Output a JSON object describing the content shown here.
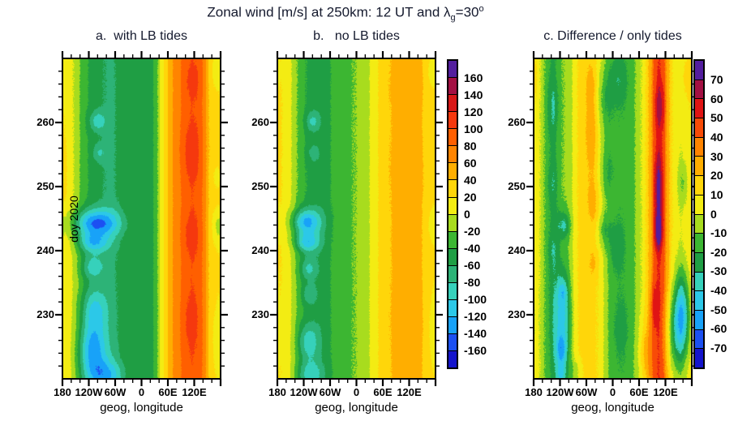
{
  "title": {
    "prefix": "Zonal wind [m/s] at 250km: 12 UT and ",
    "lambda": "λ",
    "lambda_sub": "g",
    "mid": "=30",
    "deg": "o"
  },
  "chart_data": {
    "type": "heatmap",
    "x_axis": {
      "label": "geog, longitude",
      "range": [
        -180,
        180
      ],
      "major_ticks": [
        -180,
        -120,
        -60,
        0,
        60,
        120,
        180
      ],
      "major_tick_labels": [
        "180",
        "120W",
        "60W",
        "0",
        "60E",
        "120E"
      ],
      "minor_tick_step": 20
    },
    "y_axis": {
      "label": "doy 2020",
      "range": [
        220,
        270
      ],
      "major_ticks": [
        260,
        250,
        240,
        230
      ],
      "major_tick_labels": [
        "260",
        "250",
        "240",
        "230"
      ],
      "minor_tick_step": 2
    },
    "colorbars": [
      {
        "id": "main",
        "applies_to_panels": [
          "a",
          "b"
        ],
        "units": "m/s",
        "levels": [
          -160,
          -140,
          -120,
          -100,
          -80,
          -60,
          -40,
          -20,
          0,
          20,
          40,
          60,
          80,
          100,
          120,
          140,
          160
        ],
        "colors": [
          "#1414cc",
          "#1c50f2",
          "#18a2f8",
          "#2cc8e8",
          "#36d1bb",
          "#2db377",
          "#1f9e44",
          "#3cb632",
          "#a8dc1e",
          "#f3ec13",
          "#ffd60a",
          "#ffae00",
          "#ff8400",
          "#ff5f00",
          "#f5380e",
          "#d81717",
          "#a31043",
          "#531e9e"
        ]
      },
      {
        "id": "diff",
        "applies_to_panels": [
          "c"
        ],
        "units": "m/s",
        "levels": [
          -70,
          -60,
          -50,
          -40,
          -30,
          -20,
          -10,
          0,
          10,
          20,
          30,
          40,
          50,
          60,
          70
        ],
        "colors": [
          "#1414cc",
          "#1c50f2",
          "#18a2f8",
          "#2cc8e8",
          "#36d1bb",
          "#1f9e44",
          "#3cb632",
          "#a8dc1e",
          "#f3ec13",
          "#ffd60a",
          "#ffae00",
          "#ff8400",
          "#f84b07",
          "#e01414",
          "#a31043",
          "#531e9e"
        ]
      }
    ],
    "panels": [
      {
        "id": "a",
        "title": "a.  with LB tides",
        "colorbar": "main",
        "lon_anchor_start": -175,
        "lon_anchor_step": 10,
        "base_profile": [
          18,
          12,
          0,
          -14,
          -28,
          -38,
          -45,
          -50,
          -55,
          -60,
          -62,
          -62,
          -58,
          -52,
          -46,
          -42,
          -42,
          -44,
          -48,
          -48,
          -42,
          -22,
          6,
          30,
          50,
          64,
          74,
          84,
          92,
          97,
          95,
          85,
          62,
          38,
          28,
          24
        ],
        "events": [
          {
            "lon": -105,
            "doy": 244.3,
            "lon_sigma": 38,
            "doy_sigma": 1.5,
            "amp": -95
          },
          {
            "lon": -112,
            "doy": 241.2,
            "lon_sigma": 25,
            "doy_sigma": 1.1,
            "amp": -65
          },
          {
            "lon": -112,
            "doy": 237.5,
            "lon_sigma": 18,
            "doy_sigma": 1.3,
            "amp": -45
          },
          {
            "lon": -108,
            "doy": 230.5,
            "lon_sigma": 20,
            "doy_sigma": 2.6,
            "amp": -60
          },
          {
            "lon": -112,
            "doy": 224.5,
            "lon_sigma": 22,
            "doy_sigma": 2.6,
            "amp": -80
          },
          {
            "lon": -98,
            "doy": 220.5,
            "lon_sigma": 26,
            "doy_sigma": 1.8,
            "amp": -55
          },
          {
            "lon": -100,
            "doy": 260.2,
            "lon_sigma": 13,
            "doy_sigma": 1.1,
            "amp": -42
          },
          {
            "lon": -96,
            "doy": 255.3,
            "lon_sigma": 11,
            "doy_sigma": 1.0,
            "amp": -28
          },
          {
            "lon": 113,
            "doy": 255.5,
            "lon_sigma": 17,
            "doy_sigma": 3.2,
            "amp": 16
          },
          {
            "lon": 112,
            "doy": 242.5,
            "lon_sigma": 15,
            "doy_sigma": 2.4,
            "amp": 14
          },
          {
            "lon": 110,
            "doy": 229,
            "lon_sigma": 15,
            "doy_sigma": 3.5,
            "amp": 12
          },
          {
            "lon": 116,
            "doy": 266.5,
            "lon_sigma": 14,
            "doy_sigma": 2.0,
            "amp": 12
          },
          {
            "lon": -65,
            "doy": 220.5,
            "lon_sigma": 22,
            "doy_sigma": 1.6,
            "amp": -25
          },
          {
            "lon": -178,
            "doy": 252,
            "lon_sigma": 10,
            "doy_sigma": 4,
            "amp": 8
          },
          {
            "lon": 172,
            "doy": 268,
            "lon_sigma": 9,
            "doy_sigma": 1.8,
            "amp": -22
          },
          {
            "lon": 172,
            "doy": 251.5,
            "lon_sigma": 8,
            "doy_sigma": 1.6,
            "amp": -16
          },
          {
            "lon": 173,
            "doy": 243.5,
            "lon_sigma": 9,
            "doy_sigma": 2.0,
            "amp": -22
          },
          {
            "lon": 174,
            "doy": 226,
            "lon_sigma": 10,
            "doy_sigma": 4.0,
            "amp": -18
          }
        ]
      },
      {
        "id": "b",
        "title": "b.   no LB tides",
        "colorbar": "main",
        "lon_anchor_start": -175,
        "lon_anchor_step": 10,
        "base_profile": [
          22,
          18,
          8,
          -2,
          -20,
          -32,
          -40,
          -46,
          -50,
          -52,
          -50,
          -45,
          -38,
          -32,
          -28,
          -25,
          -22,
          -20,
          -18,
          -14,
          -6,
          6,
          16,
          25,
          33,
          38,
          42,
          45,
          48,
          50,
          50,
          48,
          43,
          36,
          30,
          25
        ],
        "events": [
          {
            "lon": -115,
            "doy": 244.5,
            "lon_sigma": 24,
            "doy_sigma": 1.4,
            "amp": -85
          },
          {
            "lon": -113,
            "doy": 241.3,
            "lon_sigma": 20,
            "doy_sigma": 1.1,
            "amp": -70
          },
          {
            "lon": -110,
            "doy": 237.2,
            "lon_sigma": 14,
            "doy_sigma": 1.2,
            "amp": -42
          },
          {
            "lon": -108,
            "doy": 233.2,
            "lon_sigma": 12,
            "doy_sigma": 1.2,
            "amp": -32
          },
          {
            "lon": -110,
            "doy": 225.8,
            "lon_sigma": 17,
            "doy_sigma": 2.0,
            "amp": -52
          },
          {
            "lon": -106,
            "doy": 220.6,
            "lon_sigma": 20,
            "doy_sigma": 1.6,
            "amp": -50
          },
          {
            "lon": -100,
            "doy": 260.2,
            "lon_sigma": 11,
            "doy_sigma": 1.1,
            "amp": -38
          },
          {
            "lon": -98,
            "doy": 255.2,
            "lon_sigma": 10,
            "doy_sigma": 1.0,
            "amp": -22
          },
          {
            "lon": 115,
            "doy": 266,
            "lon_sigma": 25,
            "doy_sigma": 2.6,
            "amp": 7
          },
          {
            "lon": 118,
            "doy": 252.5,
            "lon_sigma": 25,
            "doy_sigma": 3.4,
            "amp": 7
          },
          {
            "lon": 120,
            "doy": 229.5,
            "lon_sigma": 22,
            "doy_sigma": 4.5,
            "amp": 6
          },
          {
            "lon": 172,
            "doy": 268,
            "lon_sigma": 9,
            "doy_sigma": 1.6,
            "amp": -18
          },
          {
            "lon": 173,
            "doy": 244,
            "lon_sigma": 9,
            "doy_sigma": 2.0,
            "amp": -16
          },
          {
            "lon": 174,
            "doy": 228,
            "lon_sigma": 10,
            "doy_sigma": 4.5,
            "amp": -14
          }
        ]
      },
      {
        "id": "c",
        "title": "c. Difference / only tides",
        "colorbar": "diff",
        "lon_anchor_start": -175,
        "lon_anchor_step": 10,
        "base_profile": [
          8,
          0,
          -10,
          -18,
          -22,
          -16,
          -10,
          -8,
          -2,
          8,
          12,
          14,
          14,
          13,
          10,
          4,
          -6,
          -13,
          -16,
          -18,
          -18,
          -16,
          -13,
          -8,
          0,
          10,
          24,
          42,
          50,
          44,
          26,
          10,
          4,
          2,
          5,
          8
        ],
        "events": [
          {
            "lon": -114,
            "doy": 229.5,
            "lon_sigma": 13,
            "doy_sigma": 5.5,
            "amp": -34
          },
          {
            "lon": -117,
            "doy": 224.3,
            "lon_sigma": 8,
            "doy_sigma": 1.7,
            "amp": -26
          },
          {
            "lon": -114,
            "doy": 233.5,
            "lon_sigma": 7,
            "doy_sigma": 1.2,
            "amp": -14
          },
          {
            "lon": -117,
            "doy": 220.5,
            "lon_sigma": 8,
            "doy_sigma": 1.3,
            "amp": -22
          },
          {
            "lon": -111,
            "doy": 244,
            "lon_sigma": 11,
            "doy_sigma": 1.6,
            "amp": -22
          },
          {
            "lon": -136,
            "doy": 262.5,
            "lon_sigma": 9,
            "doy_sigma": 3.2,
            "amp": -10
          },
          {
            "lon": -136,
            "doy": 250.5,
            "lon_sigma": 8,
            "doy_sigma": 2.4,
            "amp": -8
          },
          {
            "lon": -135,
            "doy": 240,
            "lon_sigma": 8,
            "doy_sigma": 2.2,
            "amp": -8
          },
          {
            "lon": -48,
            "doy": 258.5,
            "lon_sigma": 9,
            "doy_sigma": 4.8,
            "amp": 16
          },
          {
            "lon": -45,
            "doy": 247.5,
            "lon_sigma": 8,
            "doy_sigma": 2.2,
            "amp": 14
          },
          {
            "lon": -50,
            "doy": 266,
            "lon_sigma": 8,
            "doy_sigma": 2.2,
            "amp": 10
          },
          {
            "lon": -45,
            "doy": 238,
            "lon_sigma": 7,
            "doy_sigma": 1.6,
            "amp": 10
          },
          {
            "lon": -20,
            "doy": 263.5,
            "lon_sigma": 13,
            "doy_sigma": 3.8,
            "amp": -16
          },
          {
            "lon": -16,
            "doy": 252.5,
            "lon_sigma": 11,
            "doy_sigma": 3.0,
            "amp": -13
          },
          {
            "lon": -20,
            "doy": 243.2,
            "lon_sigma": 10,
            "doy_sigma": 1.8,
            "amp": -16
          },
          {
            "lon": 12,
            "doy": 266.5,
            "lon_sigma": 15,
            "doy_sigma": 2.4,
            "amp": -11
          },
          {
            "lon": 8,
            "doy": 240.5,
            "lon_sigma": 12,
            "doy_sigma": 2.6,
            "amp": -11
          },
          {
            "lon": 18,
            "doy": 228,
            "lon_sigma": 14,
            "doy_sigma": 3.2,
            "amp": -7
          },
          {
            "lon": 104,
            "doy": 249.8,
            "lon_sigma": 7,
            "doy_sigma": 4.2,
            "amp": 26
          },
          {
            "lon": 104,
            "doy": 243.0,
            "lon_sigma": 6,
            "doy_sigma": 2.0,
            "amp": 30
          },
          {
            "lon": 107,
            "doy": 262.5,
            "lon_sigma": 8,
            "doy_sigma": 2.6,
            "amp": 18
          },
          {
            "lon": 95,
            "doy": 231.5,
            "lon_sigma": 8,
            "doy_sigma": 2.6,
            "amp": 14
          },
          {
            "lon": 158,
            "doy": 230.5,
            "lon_sigma": 12,
            "doy_sigma": 4.6,
            "amp": -38
          },
          {
            "lon": 145,
            "doy": 227.5,
            "lon_sigma": 18,
            "doy_sigma": 4.5,
            "amp": -28
          },
          {
            "lon": 160,
            "doy": 250.5,
            "lon_sigma": 8,
            "doy_sigma": 2.4,
            "amp": -14
          },
          {
            "lon": 75,
            "doy": 224,
            "lon_sigma": 14,
            "doy_sigma": 3.5,
            "amp": 14
          },
          {
            "lon": -85,
            "doy": 221,
            "lon_sigma": 12,
            "doy_sigma": 1.6,
            "amp": -12
          },
          {
            "lon": 172,
            "doy": 267,
            "lon_sigma": 10,
            "doy_sigma": 2.2,
            "amp": 10
          }
        ]
      }
    ]
  }
}
